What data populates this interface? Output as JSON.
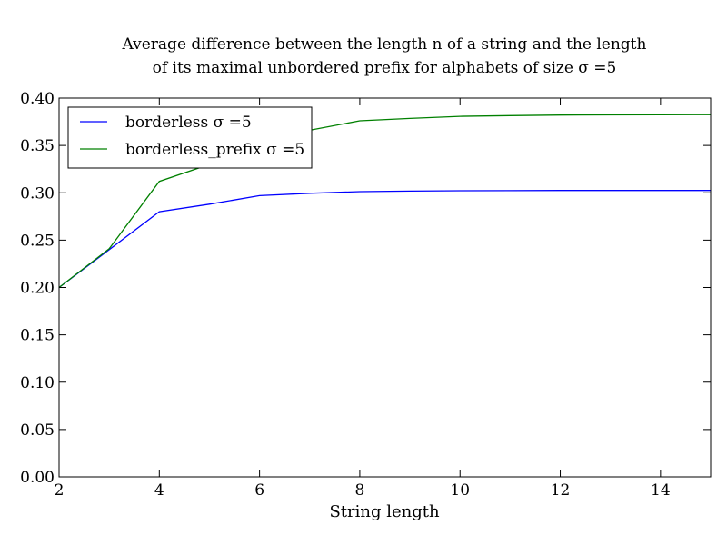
{
  "chart_data": {
    "type": "line",
    "title_lines": [
      "Average difference between the length n of a string and the length",
      "of its maximal unbordered prefix for alphabets of size σ =5"
    ],
    "xlabel": "String length",
    "ylabel": "",
    "xlim": [
      2,
      15
    ],
    "ylim": [
      0.0,
      0.4
    ],
    "x_ticks": [
      2,
      4,
      6,
      8,
      10,
      12,
      14
    ],
    "y_ticks": [
      0.0,
      0.05,
      0.1,
      0.15,
      0.2,
      0.25,
      0.3,
      0.35,
      0.4
    ],
    "x_tick_labels": [
      "2",
      "4",
      "6",
      "8",
      "10",
      "12",
      "14"
    ],
    "y_tick_labels": [
      "0.00",
      "0.05",
      "0.10",
      "0.15",
      "0.20",
      "0.25",
      "0.30",
      "0.35",
      "0.40"
    ],
    "grid": false,
    "legend_position": "top-left",
    "series": [
      {
        "name": "borderless σ =5",
        "color": "#0000ff",
        "x": [
          2,
          3,
          4,
          5,
          6,
          7,
          8,
          9,
          10,
          11,
          12,
          13,
          14,
          15
        ],
        "y": [
          0.2,
          0.24,
          0.28,
          0.288,
          0.297,
          0.2995,
          0.3012,
          0.3018,
          0.3022,
          0.3023,
          0.3024,
          0.3024,
          0.3024,
          0.3024
        ]
      },
      {
        "name": "borderless_prefix σ =5",
        "color": "#008000",
        "x": [
          2,
          3,
          4,
          5,
          6,
          7,
          8,
          9,
          10,
          11,
          12,
          13,
          14,
          15
        ],
        "y": [
          0.2,
          0.241,
          0.312,
          0.33,
          0.352,
          0.366,
          0.376,
          0.3785,
          0.3807,
          0.3815,
          0.3821,
          0.3823,
          0.3824,
          0.3825
        ]
      }
    ]
  }
}
